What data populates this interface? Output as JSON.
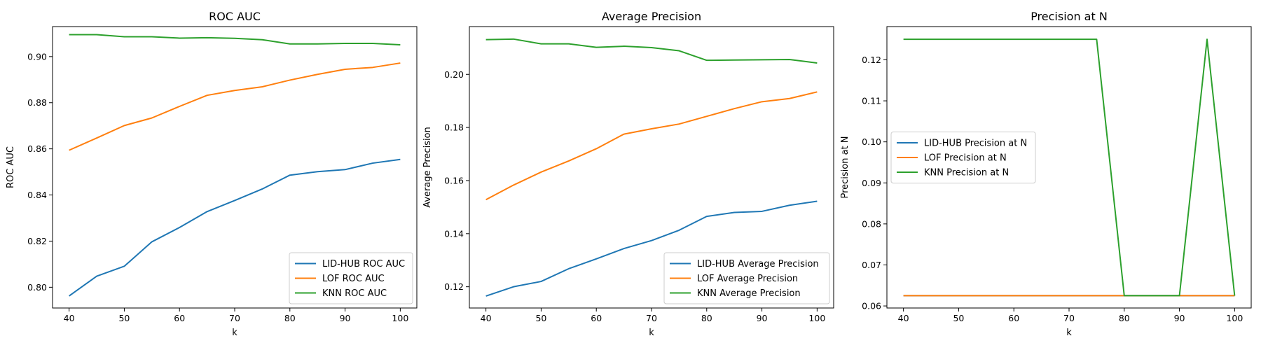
{
  "chart_data": [
    {
      "type": "line",
      "title": "ROC AUC",
      "xlabel": "k",
      "ylabel": "ROC AUC",
      "x": [
        40,
        45,
        50,
        55,
        60,
        65,
        70,
        75,
        80,
        85,
        90,
        95,
        100
      ],
      "xlim": [
        37,
        103
      ],
      "ylim": [
        0.791,
        0.913
      ],
      "xticks": [
        40,
        50,
        60,
        70,
        80,
        90,
        100
      ],
      "yticks": [
        0.8,
        0.82,
        0.84,
        0.86,
        0.88,
        0.9
      ],
      "ytick_decimals": 2,
      "legend_position": "lower-right",
      "grid": false,
      "series": [
        {
          "name": "LID-HUB ROC AUC",
          "color": "#1f77b4",
          "values": [
            0.7962,
            0.8048,
            0.8091,
            0.8197,
            0.8259,
            0.8328,
            0.8376,
            0.8426,
            0.8486,
            0.8501,
            0.851,
            0.8538,
            0.8554
          ]
        },
        {
          "name": "LOF ROC AUC",
          "color": "#ff7f0e",
          "values": [
            0.8594,
            0.8647,
            0.8701,
            0.8734,
            0.8784,
            0.8832,
            0.8853,
            0.8869,
            0.8898,
            0.8923,
            0.8945,
            0.8953,
            0.8972
          ]
        },
        {
          "name": "KNN ROC AUC",
          "color": "#2ca02c",
          "values": [
            0.9095,
            0.9095,
            0.9086,
            0.9086,
            0.908,
            0.9082,
            0.9079,
            0.9073,
            0.9055,
            0.9055,
            0.9057,
            0.9057,
            0.9051
          ]
        }
      ]
    },
    {
      "type": "line",
      "title": "Average Precision",
      "xlabel": "k",
      "ylabel": "Average Precision",
      "x": [
        40,
        45,
        50,
        55,
        60,
        65,
        70,
        75,
        80,
        85,
        90,
        95,
        100
      ],
      "xlim": [
        37,
        103
      ],
      "ylim": [
        0.112,
        0.218
      ],
      "xticks": [
        40,
        50,
        60,
        70,
        80,
        90,
        100
      ],
      "yticks": [
        0.12,
        0.14,
        0.16,
        0.18,
        0.2
      ],
      "ytick_decimals": 2,
      "legend_position": "lower-right",
      "grid": false,
      "series": [
        {
          "name": "LID-HUB Average Precision",
          "color": "#1f77b4",
          "values": [
            0.1165,
            0.12,
            0.122,
            0.1268,
            0.1305,
            0.1344,
            0.1374,
            0.1413,
            0.1465,
            0.148,
            0.1484,
            0.1507,
            0.1522
          ]
        },
        {
          "name": "LOF Average Precision",
          "color": "#ff7f0e",
          "values": [
            0.1528,
            0.1583,
            0.1632,
            0.1674,
            0.172,
            0.1775,
            0.1795,
            0.1813,
            0.1842,
            0.1871,
            0.1897,
            0.1909,
            0.1934
          ]
        },
        {
          "name": "KNN Average Precision",
          "color": "#2ca02c",
          "values": [
            0.2131,
            0.2133,
            0.2115,
            0.2115,
            0.2102,
            0.2106,
            0.2101,
            0.2089,
            0.2053,
            0.2054,
            0.2055,
            0.2056,
            0.2043
          ]
        }
      ]
    },
    {
      "type": "line",
      "title": "Precision at N",
      "xlabel": "k",
      "ylabel": "Precision at N",
      "x": [
        40,
        45,
        50,
        55,
        60,
        65,
        70,
        75,
        80,
        85,
        90,
        95,
        100
      ],
      "xlim": [
        37,
        103
      ],
      "ylim": [
        0.0595,
        0.1281
      ],
      "xticks": [
        40,
        50,
        60,
        70,
        80,
        90,
        100
      ],
      "yticks": [
        0.06,
        0.07,
        0.08,
        0.09,
        0.1,
        0.11,
        0.12
      ],
      "ytick_decimals": 2,
      "legend_position": "center-left",
      "grid": false,
      "series": [
        {
          "name": "LID-HUB Precision at N",
          "color": "#1f77b4",
          "values": [
            0.0625,
            0.0625,
            0.0625,
            0.0625,
            0.0625,
            0.0625,
            0.0625,
            0.0625,
            0.0625,
            0.0625,
            0.0625,
            0.0625,
            0.0625
          ]
        },
        {
          "name": "LOF Precision at N",
          "color": "#ff7f0e",
          "values": [
            0.0625,
            0.0625,
            0.0625,
            0.0625,
            0.0625,
            0.0625,
            0.0625,
            0.0625,
            0.0625,
            0.0625,
            0.0625,
            0.0625,
            0.0625
          ]
        },
        {
          "name": "KNN Precision at N",
          "color": "#2ca02c",
          "values": [
            0.125,
            0.125,
            0.125,
            0.125,
            0.125,
            0.125,
            0.125,
            0.125,
            0.0625,
            0.0625,
            0.0625,
            0.125,
            0.0625
          ]
        }
      ]
    }
  ]
}
